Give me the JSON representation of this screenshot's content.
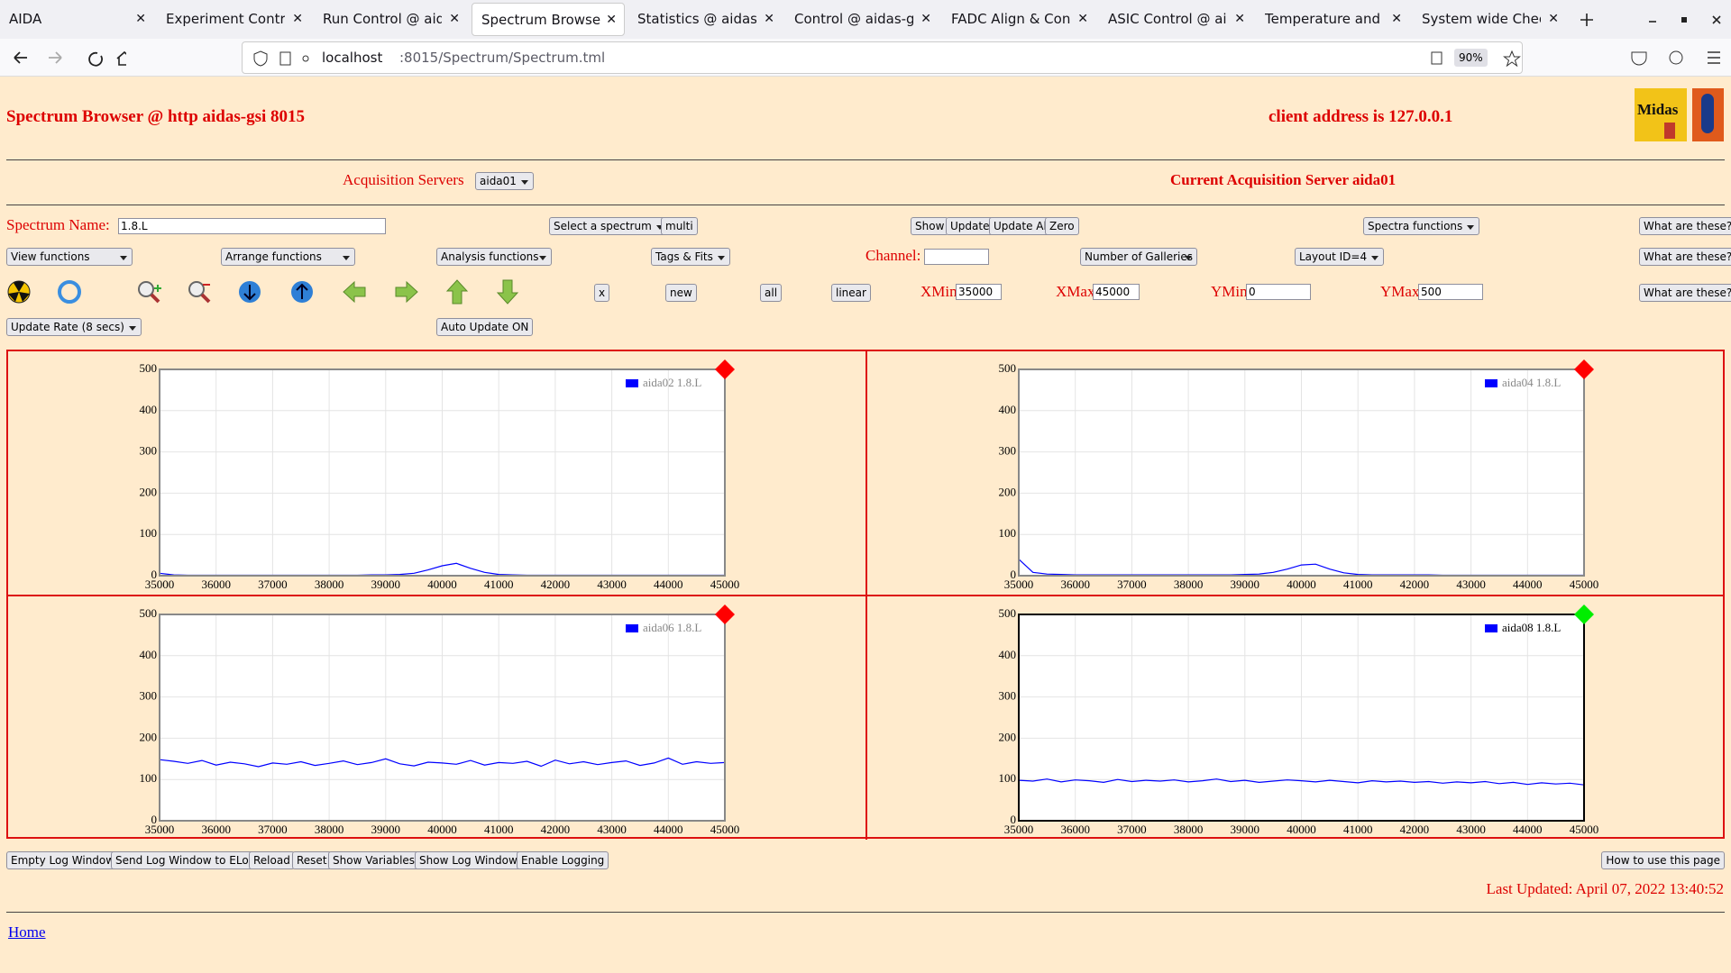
{
  "browser": {
    "tabs": [
      "AIDA",
      "Experiment Control @",
      "Run Control @ aidas-",
      "Spectrum Browser @",
      "Statistics @ aidas-gsi",
      "Control @ aidas-gsi",
      "FADC Align & Contro",
      "ASIC Control @ aidas",
      "Temperature and stat",
      "System wide Checks ("
    ],
    "url_host": "localhost",
    "url_rest": ":8015/Spectrum/Spectrum.tml",
    "zoom": "90%"
  },
  "header": {
    "title": "Spectrum Browser @ http aidas-gsi 8015",
    "client": "client address is 127.0.0.1",
    "logo": "Midas"
  },
  "servers": {
    "label": "Acquisition Servers",
    "selected": "aida01",
    "current": "Current Acquisition Server aida01"
  },
  "controls": {
    "row1": {
      "spectrum_label": "Spectrum Name:",
      "spectrum_value": "1.8.L",
      "select_spectrum": "Select a spectrum",
      "multi": "multi",
      "buttons": [
        "Show",
        "Update",
        "Update All",
        "Zero"
      ],
      "spectra_functions": "Spectra functions",
      "help": "What are these?"
    },
    "row2": {
      "selects": [
        "View functions",
        "Arrange functions",
        "Analysis functions",
        "Tags & Fits"
      ],
      "channel_label": "Channel:",
      "galleries": "Number of Galleries",
      "layout": "Layout ID=4",
      "help": "What are these?"
    },
    "row3": {
      "buttons": [
        "x",
        "new",
        "all",
        "linear"
      ],
      "xmin_label": "XMin",
      "xmin": "35000",
      "xmax_label": "XMax",
      "xmax": "45000",
      "ymin_label": "YMin",
      "ymin": "0",
      "ymax_label": "YMax",
      "ymax": "500",
      "help": "What are these?"
    },
    "row4": {
      "update_rate": "Update Rate (8 secs)",
      "auto_update": "Auto Update ON"
    }
  },
  "chart_data": [
    {
      "type": "line",
      "legend": "top-right",
      "grid": true,
      "frame_color": "#888888",
      "marker_color": "#ff0000",
      "x": [
        35000,
        35250,
        35500,
        35750,
        36000,
        36250,
        36500,
        36750,
        37000,
        37250,
        37500,
        37750,
        38000,
        38250,
        38500,
        38750,
        39000,
        39250,
        39500,
        39750,
        40000,
        40250,
        40500,
        40750,
        41000,
        41250,
        41500,
        41750,
        42000,
        42250,
        42500,
        42750,
        43000,
        43250,
        43500,
        43750,
        44000,
        44250,
        44500,
        44750,
        45000
      ],
      "series": [
        {
          "name": "aida02 1.8.L",
          "color": "#0000ff",
          "values": [
            6,
            2,
            1,
            1,
            1,
            1,
            1,
            1,
            1,
            1,
            1,
            1,
            1,
            1,
            1,
            2,
            2,
            3,
            6,
            14,
            24,
            30,
            18,
            8,
            3,
            2,
            1,
            1,
            1,
            1,
            1,
            1,
            1,
            1,
            1,
            1,
            1,
            1,
            1,
            1,
            1
          ]
        }
      ],
      "xlim": [
        35000,
        45000
      ],
      "ylim": [
        0,
        500
      ],
      "xticks": [
        35000,
        36000,
        37000,
        38000,
        39000,
        40000,
        41000,
        42000,
        43000,
        44000,
        45000
      ],
      "yticks": [
        0,
        100,
        200,
        300,
        400,
        500
      ]
    },
    {
      "type": "line",
      "legend": "top-right",
      "grid": true,
      "frame_color": "#888888",
      "marker_color": "#ff0000",
      "x": [
        35000,
        35250,
        35500,
        35750,
        36000,
        36250,
        36500,
        36750,
        37000,
        37250,
        37500,
        37750,
        38000,
        38250,
        38500,
        38750,
        39000,
        39250,
        39500,
        39750,
        40000,
        40250,
        40500,
        40750,
        41000,
        41250,
        41500,
        41750,
        42000,
        42250,
        42500,
        42750,
        43000,
        43250,
        43500,
        43750,
        44000,
        44250,
        44500,
        44750,
        45000
      ],
      "series": [
        {
          "name": "aida04 1.8.L",
          "color": "#0000ff",
          "values": [
            40,
            8,
            4,
            3,
            2,
            2,
            2,
            2,
            2,
            2,
            2,
            2,
            2,
            2,
            2,
            2,
            3,
            4,
            8,
            16,
            26,
            28,
            16,
            7,
            3,
            2,
            2,
            2,
            2,
            2,
            1,
            1,
            1,
            1,
            1,
            1,
            1,
            1,
            1,
            1,
            1
          ]
        }
      ],
      "xlim": [
        35000,
        45000
      ],
      "ylim": [
        0,
        500
      ],
      "xticks": [
        35000,
        36000,
        37000,
        38000,
        39000,
        40000,
        41000,
        42000,
        43000,
        44000,
        45000
      ],
      "yticks": [
        0,
        100,
        200,
        300,
        400,
        500
      ]
    },
    {
      "type": "line",
      "legend": "top-right",
      "grid": true,
      "frame_color": "#888888",
      "marker_color": "#ff0000",
      "x": [
        35000,
        35250,
        35500,
        35750,
        36000,
        36250,
        36500,
        36750,
        37000,
        37250,
        37500,
        37750,
        38000,
        38250,
        38500,
        38750,
        39000,
        39250,
        39500,
        39750,
        40000,
        40250,
        40500,
        40750,
        41000,
        41250,
        41500,
        41750,
        42000,
        42250,
        42500,
        42750,
        43000,
        43250,
        43500,
        43750,
        44000,
        44250,
        44500,
        44750,
        45000
      ],
      "series": [
        {
          "name": "aida06 1.8.L",
          "color": "#0000ff",
          "values": [
            148,
            144,
            139,
            146,
            135,
            142,
            138,
            131,
            140,
            137,
            143,
            134,
            139,
            145,
            136,
            141,
            150,
            138,
            133,
            142,
            140,
            137,
            146,
            135,
            141,
            139,
            144,
            132,
            147,
            138,
            143,
            136,
            141,
            145,
            134,
            140,
            152,
            137,
            143,
            139,
            141
          ]
        }
      ],
      "xlim": [
        35000,
        45000
      ],
      "ylim": [
        0,
        500
      ],
      "xticks": [
        35000,
        36000,
        37000,
        38000,
        39000,
        40000,
        41000,
        42000,
        43000,
        44000,
        45000
      ],
      "yticks": [
        0,
        100,
        200,
        300,
        400,
        500
      ]
    },
    {
      "type": "line",
      "legend": "top-right",
      "grid": true,
      "frame_color": "#000000",
      "marker_color": "#00ee00",
      "x": [
        35000,
        35250,
        35500,
        35750,
        36000,
        36250,
        36500,
        36750,
        37000,
        37250,
        37500,
        37750,
        38000,
        38250,
        38500,
        38750,
        39000,
        39250,
        39500,
        39750,
        40000,
        40250,
        40500,
        40750,
        41000,
        41250,
        41500,
        41750,
        42000,
        42250,
        42500,
        42750,
        43000,
        43250,
        43500,
        43750,
        44000,
        44250,
        44500,
        44750,
        45000
      ],
      "series": [
        {
          "name": "aida08 1.8.L",
          "color": "#0000ff",
          "values": [
            98,
            96,
            101,
            94,
            99,
            97,
            93,
            100,
            95,
            98,
            96,
            99,
            94,
            97,
            101,
            95,
            98,
            93,
            96,
            99,
            97,
            94,
            98,
            95,
            92,
            97,
            94,
            96,
            93,
            95,
            91,
            94,
            92,
            95,
            90,
            93,
            88,
            92,
            89,
            91,
            87
          ]
        }
      ],
      "xlim": [
        35000,
        45000
      ],
      "ylim": [
        0,
        500
      ],
      "xticks": [
        35000,
        36000,
        37000,
        38000,
        39000,
        40000,
        41000,
        42000,
        43000,
        44000,
        45000
      ],
      "yticks": [
        0,
        100,
        200,
        300,
        400,
        500
      ]
    }
  ],
  "footer": {
    "buttons": [
      "Empty Log Window",
      "Send Log Window to ELog",
      "Reload",
      "Reset",
      "Show Variables",
      "Show Log Window",
      "Enable Logging"
    ],
    "help": "How to use this page",
    "last_updated": "Last Updated: April 07, 2022 13:40:52",
    "home": "Home"
  }
}
